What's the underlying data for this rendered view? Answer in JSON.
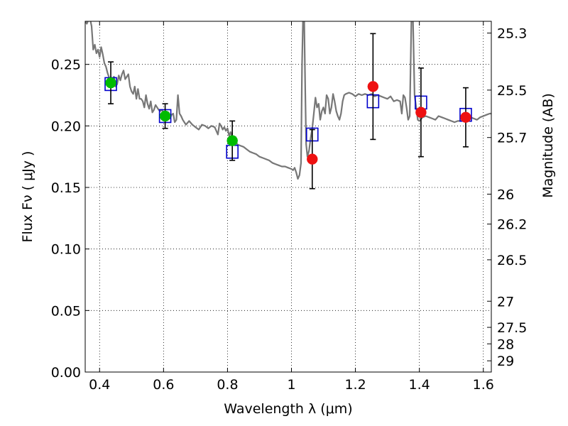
{
  "chart_data": {
    "type": "scatter",
    "xlabel": "Wavelength  λ (μm)",
    "ylabel": "Flux  Fν  ( μJy )",
    "y2label": "Magnitude (AB)",
    "xlim": [
      0.355,
      1.625
    ],
    "ylim": [
      0.0,
      0.285
    ],
    "grid": true,
    "x_ticks": [
      {
        "value": 0.4,
        "label": "0.4"
      },
      {
        "value": 0.6,
        "label": "0.6"
      },
      {
        "value": 0.8,
        "label": "0.8"
      },
      {
        "value": 1.0,
        "label": "1"
      },
      {
        "value": 1.2,
        "label": "1.2"
      },
      {
        "value": 1.4,
        "label": "1.4"
      },
      {
        "value": 1.6,
        "label": "1.6"
      }
    ],
    "y_ticks": [
      {
        "value": 0.0,
        "label": "0.00"
      },
      {
        "value": 0.05,
        "label": "0.05"
      },
      {
        "value": 0.1,
        "label": "0.10"
      },
      {
        "value": 0.15,
        "label": "0.15"
      },
      {
        "value": 0.2,
        "label": "0.20"
      },
      {
        "value": 0.25,
        "label": "0.25"
      }
    ],
    "mag_ticks": [
      {
        "value": 25.3,
        "label": "25.3"
      },
      {
        "value": 25.5,
        "label": "25.5"
      },
      {
        "value": 25.7,
        "label": "25.7"
      },
      {
        "value": 26.0,
        "label": "26"
      },
      {
        "value": 26.2,
        "label": "26.2"
      },
      {
        "value": 26.5,
        "label": "26.5"
      },
      {
        "value": 27.0,
        "label": "27"
      },
      {
        "value": 27.5,
        "label": "27.5"
      },
      {
        "value": 28.0,
        "label": "28"
      },
      {
        "value": 29.0,
        "label": "29"
      }
    ],
    "series": [
      {
        "type": "line",
        "color": "#777777",
        "points": [
          [
            0.355,
            0.285
          ],
          [
            0.36,
            0.283
          ],
          [
            0.365,
            0.286
          ],
          [
            0.37,
            0.287
          ],
          [
            0.375,
            0.281
          ],
          [
            0.38,
            0.262
          ],
          [
            0.385,
            0.266
          ],
          [
            0.39,
            0.259
          ],
          [
            0.395,
            0.262
          ],
          [
            0.4,
            0.256
          ],
          [
            0.405,
            0.264
          ],
          [
            0.41,
            0.258
          ],
          [
            0.415,
            0.251
          ],
          [
            0.42,
            0.248
          ],
          [
            0.425,
            0.243
          ],
          [
            0.43,
            0.239
          ],
          [
            0.435,
            0.236
          ],
          [
            0.44,
            0.236
          ],
          [
            0.445,
            0.24
          ],
          [
            0.45,
            0.232
          ],
          [
            0.455,
            0.234
          ],
          [
            0.46,
            0.241
          ],
          [
            0.465,
            0.237
          ],
          [
            0.47,
            0.242
          ],
          [
            0.475,
            0.245
          ],
          [
            0.48,
            0.238
          ],
          [
            0.485,
            0.24
          ],
          [
            0.49,
            0.242
          ],
          [
            0.495,
            0.232
          ],
          [
            0.5,
            0.228
          ],
          [
            0.505,
            0.226
          ],
          [
            0.51,
            0.232
          ],
          [
            0.515,
            0.222
          ],
          [
            0.52,
            0.23
          ],
          [
            0.525,
            0.222
          ],
          [
            0.53,
            0.222
          ],
          [
            0.535,
            0.22
          ],
          [
            0.54,
            0.215
          ],
          [
            0.545,
            0.225
          ],
          [
            0.55,
            0.218
          ],
          [
            0.555,
            0.214
          ],
          [
            0.56,
            0.22
          ],
          [
            0.565,
            0.211
          ],
          [
            0.57,
            0.213
          ],
          [
            0.575,
            0.217
          ],
          [
            0.58,
            0.215
          ],
          [
            0.585,
            0.213
          ],
          [
            0.59,
            0.212
          ],
          [
            0.595,
            0.213
          ],
          [
            0.6,
            0.211
          ],
          [
            0.605,
            0.21
          ],
          [
            0.61,
            0.208
          ],
          [
            0.615,
            0.211
          ],
          [
            0.62,
            0.206
          ],
          [
            0.625,
            0.209
          ],
          [
            0.63,
            0.21
          ],
          [
            0.635,
            0.203
          ],
          [
            0.64,
            0.205
          ],
          [
            0.645,
            0.225
          ],
          [
            0.65,
            0.21
          ],
          [
            0.655,
            0.208
          ],
          [
            0.66,
            0.205
          ],
          [
            0.665,
            0.203
          ],
          [
            0.67,
            0.201
          ],
          [
            0.68,
            0.204
          ],
          [
            0.69,
            0.201
          ],
          [
            0.7,
            0.199
          ],
          [
            0.71,
            0.197
          ],
          [
            0.72,
            0.201
          ],
          [
            0.73,
            0.2
          ],
          [
            0.74,
            0.198
          ],
          [
            0.75,
            0.2
          ],
          [
            0.76,
            0.199
          ],
          [
            0.77,
            0.193
          ],
          [
            0.775,
            0.202
          ],
          [
            0.78,
            0.2
          ],
          [
            0.785,
            0.197
          ],
          [
            0.79,
            0.199
          ],
          [
            0.795,
            0.196
          ],
          [
            0.8,
            0.198
          ],
          [
            0.805,
            0.192
          ],
          [
            0.81,
            0.195
          ],
          [
            0.815,
            0.19
          ],
          [
            0.82,
            0.189
          ],
          [
            0.825,
            0.191
          ],
          [
            0.83,
            0.185
          ],
          [
            0.84,
            0.184
          ],
          [
            0.85,
            0.183
          ],
          [
            0.86,
            0.181
          ],
          [
            0.87,
            0.179
          ],
          [
            0.88,
            0.178
          ],
          [
            0.89,
            0.177
          ],
          [
            0.9,
            0.175
          ],
          [
            0.91,
            0.174
          ],
          [
            0.92,
            0.173
          ],
          [
            0.93,
            0.172
          ],
          [
            0.94,
            0.17
          ],
          [
            0.95,
            0.169
          ],
          [
            0.96,
            0.168
          ],
          [
            0.97,
            0.167
          ],
          [
            0.98,
            0.167
          ],
          [
            0.99,
            0.166
          ],
          [
            1.0,
            0.165
          ],
          [
            1.005,
            0.164
          ],
          [
            1.01,
            0.166
          ],
          [
            1.015,
            0.162
          ],
          [
            1.02,
            0.157
          ],
          [
            1.025,
            0.16
          ],
          [
            1.03,
            0.17
          ],
          [
            1.033,
            0.25
          ],
          [
            1.036,
            0.285
          ],
          [
            1.04,
            0.285
          ],
          [
            1.043,
            0.23
          ],
          [
            1.046,
            0.185
          ],
          [
            1.05,
            0.175
          ],
          [
            1.055,
            0.18
          ],
          [
            1.06,
            0.19
          ],
          [
            1.065,
            0.198
          ],
          [
            1.07,
            0.21
          ],
          [
            1.075,
            0.223
          ],
          [
            1.08,
            0.215
          ],
          [
            1.085,
            0.218
          ],
          [
            1.09,
            0.205
          ],
          [
            1.095,
            0.212
          ],
          [
            1.1,
            0.215
          ],
          [
            1.105,
            0.21
          ],
          [
            1.11,
            0.225
          ],
          [
            1.115,
            0.222
          ],
          [
            1.12,
            0.21
          ],
          [
            1.125,
            0.215
          ],
          [
            1.13,
            0.226
          ],
          [
            1.135,
            0.22
          ],
          [
            1.14,
            0.212
          ],
          [
            1.145,
            0.208
          ],
          [
            1.15,
            0.205
          ],
          [
            1.155,
            0.21
          ],
          [
            1.16,
            0.22
          ],
          [
            1.165,
            0.225
          ],
          [
            1.17,
            0.226
          ],
          [
            1.18,
            0.227
          ],
          [
            1.19,
            0.226
          ],
          [
            1.2,
            0.224
          ],
          [
            1.21,
            0.226
          ],
          [
            1.22,
            0.225
          ],
          [
            1.23,
            0.226
          ],
          [
            1.24,
            0.225
          ],
          [
            1.25,
            0.226
          ],
          [
            1.26,
            0.224
          ],
          [
            1.27,
            0.225
          ],
          [
            1.28,
            0.224
          ],
          [
            1.29,
            0.223
          ],
          [
            1.3,
            0.222
          ],
          [
            1.31,
            0.224
          ],
          [
            1.32,
            0.22
          ],
          [
            1.33,
            0.221
          ],
          [
            1.34,
            0.22
          ],
          [
            1.345,
            0.21
          ],
          [
            1.35,
            0.225
          ],
          [
            1.355,
            0.223
          ],
          [
            1.36,
            0.215
          ],
          [
            1.365,
            0.205
          ],
          [
            1.37,
            0.208
          ],
          [
            1.375,
            0.285
          ],
          [
            1.38,
            0.285
          ],
          [
            1.385,
            0.225
          ],
          [
            1.39,
            0.215
          ],
          [
            1.395,
            0.205
          ],
          [
            1.4,
            0.204
          ],
          [
            1.41,
            0.207
          ],
          [
            1.42,
            0.208
          ],
          [
            1.43,
            0.207
          ],
          [
            1.44,
            0.206
          ],
          [
            1.45,
            0.205
          ],
          [
            1.46,
            0.208
          ],
          [
            1.47,
            0.207
          ],
          [
            1.48,
            0.206
          ],
          [
            1.49,
            0.205
          ],
          [
            1.5,
            0.204
          ],
          [
            1.51,
            0.203
          ],
          [
            1.52,
            0.204
          ],
          [
            1.53,
            0.204
          ],
          [
            1.54,
            0.205
          ],
          [
            1.55,
            0.206
          ],
          [
            1.56,
            0.207
          ],
          [
            1.57,
            0.206
          ],
          [
            1.58,
            0.205
          ],
          [
            1.59,
            0.207
          ],
          [
            1.6,
            0.208
          ],
          [
            1.61,
            0.209
          ],
          [
            1.62,
            0.21
          ],
          [
            1.625,
            0.21
          ]
        ]
      },
      {
        "type": "open-square",
        "color": "#0000cc",
        "points": [
          [
            0.435,
            0.234
          ],
          [
            0.605,
            0.208
          ],
          [
            0.815,
            0.179
          ],
          [
            1.065,
            0.193
          ],
          [
            1.255,
            0.22
          ],
          [
            1.405,
            0.219
          ],
          [
            1.545,
            0.209
          ]
        ]
      },
      {
        "type": "errorbar-dot",
        "color": "#00bb00",
        "points": [
          {
            "x": 0.435,
            "y": 0.235,
            "yerr": 0.017
          },
          {
            "x": 0.605,
            "y": 0.208,
            "yerr": 0.01
          },
          {
            "x": 0.815,
            "y": 0.188,
            "yerr": 0.016
          }
        ]
      },
      {
        "type": "errorbar-dot",
        "color": "#ee1111",
        "points": [
          {
            "x": 1.065,
            "y": 0.173,
            "yerr": 0.024
          },
          {
            "x": 1.255,
            "y": 0.232,
            "yerr": 0.043
          },
          {
            "x": 1.405,
            "y": 0.211,
            "yerr": 0.036
          },
          {
            "x": 1.545,
            "y": 0.207,
            "yerr": 0.024
          }
        ]
      }
    ]
  }
}
